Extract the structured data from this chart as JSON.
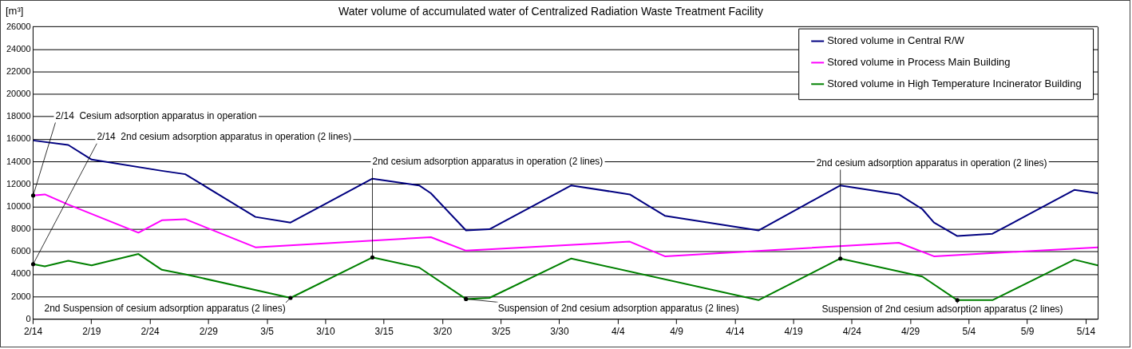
{
  "chart_data": {
    "type": "line",
    "title": "Water volume of accumulated water of Centralized Radiation Waste Treatment Facility",
    "ylabel": "[m³]",
    "xlim": [
      "--02-14",
      "--05-15"
    ],
    "xticks": [
      {
        "value": "--02-14",
        "label": "2/14"
      },
      {
        "value": "--02-19",
        "label": "2/19"
      },
      {
        "value": "--02-24",
        "label": "2/24"
      },
      {
        "value": "--02-29",
        "label": "2/29"
      },
      {
        "value": "--03-05",
        "label": "3/5"
      },
      {
        "value": "--03-10",
        "label": "3/10"
      },
      {
        "value": "--03-15",
        "label": "3/15"
      },
      {
        "value": "--03-20",
        "label": "3/20"
      },
      {
        "value": "--03-25",
        "label": "3/25"
      },
      {
        "value": "--03-30",
        "label": "3/30"
      },
      {
        "value": "--04-04",
        "label": "4/4"
      },
      {
        "value": "--04-09",
        "label": "4/9"
      },
      {
        "value": "--04-14",
        "label": "4/14"
      },
      {
        "value": "--04-19",
        "label": "4/19"
      },
      {
        "value": "--04-24",
        "label": "4/24"
      },
      {
        "value": "--04-29",
        "label": "4/29"
      },
      {
        "value": "--05-04",
        "label": "5/4"
      },
      {
        "value": "--05-09",
        "label": "5/9"
      },
      {
        "value": "--05-14",
        "label": "5/14"
      }
    ],
    "ylim": [
      0,
      26000
    ],
    "yticks": [
      0,
      2000,
      4000,
      6000,
      8000,
      10000,
      12000,
      14000,
      16000,
      18000,
      20000,
      22000,
      24000,
      26000
    ],
    "grid": "y",
    "legend": "top right",
    "marker": "none",
    "line_style": "solid",
    "series": [
      {
        "name": "Stored volume in Central R/W",
        "color": "#000080",
        "x": [
          "--02-14",
          "--02-17",
          "--02-19",
          "--02-25",
          "--02-27",
          "--03-04",
          "--03-07",
          "--03-14",
          "--03-18",
          "--03-19",
          "--03-22",
          "--03-24",
          "--03-31",
          "--04-05",
          "--04-08",
          "--04-16",
          "--04-23",
          "--04-28",
          "--04-30",
          "--05-01",
          "--05-03",
          "--05-06",
          "--05-13",
          "--05-15"
        ],
        "values": [
          15900,
          15500,
          14200,
          13200,
          12900,
          9100,
          8600,
          12500,
          11900,
          11200,
          7900,
          8000,
          11900,
          11100,
          9200,
          7900,
          11900,
          11100,
          9800,
          8600,
          7400,
          7600,
          11500,
          11200
        ]
      },
      {
        "name": "Stored volume in Process Main Building",
        "color": "#ff00ff",
        "x": [
          "--02-14",
          "--02-15",
          "--02-17",
          "--02-23",
          "--02-25",
          "--02-27",
          "--03-04",
          "--03-19",
          "--03-22",
          "--04-05",
          "--04-08",
          "--04-28",
          "--05-01",
          "--05-15"
        ],
        "values": [
          11000,
          11100,
          10200,
          7700,
          8800,
          8900,
          6400,
          7300,
          6100,
          6900,
          5600,
          6800,
          5600,
          6400
        ]
      },
      {
        "name": "Stored volume in High Temperature Incinerator Building",
        "color": "#008000",
        "x": [
          "--02-14",
          "--02-15",
          "--02-17",
          "--02-19",
          "--02-23",
          "--02-25",
          "--02-27",
          "--03-07",
          "--03-14",
          "--03-18",
          "--03-22",
          "--03-24",
          "--03-31",
          "--04-16",
          "--04-23",
          "--04-30",
          "--05-03",
          "--05-06",
          "--05-13",
          "--05-15"
        ],
        "values": [
          4900,
          4700,
          5200,
          4800,
          5800,
          4400,
          4000,
          1900,
          5500,
          4600,
          1800,
          1900,
          5400,
          1700,
          5400,
          3800,
          1700,
          1700,
          5300,
          4800
        ]
      }
    ],
    "annotations": [
      {
        "text": "2/14  Cesium adsorption apparatus in operation",
        "x": "--02-14",
        "y": 11000
      },
      {
        "text": "2/14  2nd cesium adsorption apparatus in operation (2 lines)",
        "x": "--02-14",
        "y": 4900
      },
      {
        "text": "2nd Suspension of cesium adsorption apparatus (2 lines)",
        "x": "--03-07",
        "y": 1900
      },
      {
        "text": "2nd cesium adsorption apparatus in operation (2 lines)",
        "x": "--03-14",
        "y": 5500
      },
      {
        "text": "Suspension of 2nd cesium adsorption apparatus (2 lines)",
        "x": "--03-22",
        "y": 1800
      },
      {
        "text": "2nd cesium adsorption apparatus in operation (2 lines)",
        "x": "--04-23",
        "y": 5400
      },
      {
        "text": "Suspension of 2nd cesium adsorption apparatus (2 lines)",
        "x": "--05-03",
        "y": 1700
      }
    ]
  }
}
